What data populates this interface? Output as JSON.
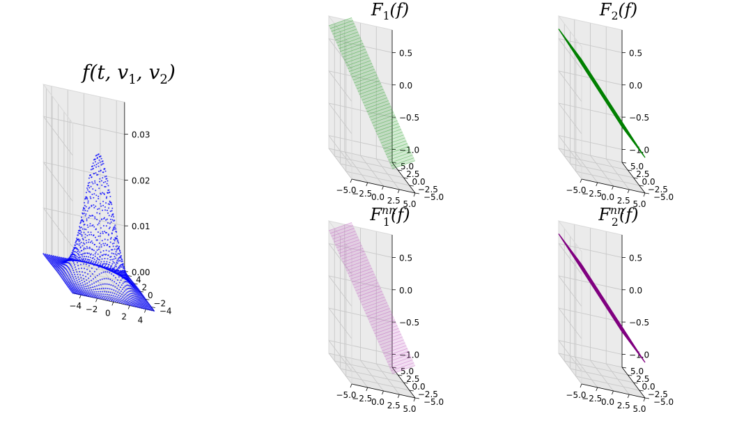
{
  "chart_data": [
    {
      "type": "scatter3d",
      "title": {
        "base": "f",
        "rest": "(t, v",
        "sub1": "1",
        "mid": ", v",
        "sub2": "2",
        "end": ")"
      },
      "marker_color": "#0000ff",
      "xlim": [
        -5,
        5
      ],
      "ylim": [
        -5,
        5
      ],
      "zlim": [
        0,
        0.037
      ],
      "xticks": [
        "−4",
        "−2",
        "0",
        "2",
        "4"
      ],
      "yticks": [
        "−4",
        "−2",
        "0",
        "2",
        "4"
      ],
      "zticks": [
        "0.00",
        "0.01",
        "0.02",
        "0.03"
      ],
      "xtick_values": [
        -4,
        -2,
        0,
        2,
        4
      ],
      "ytick_values": [
        -4,
        -2,
        0,
        2,
        4
      ],
      "ztick_values": [
        0,
        0.01,
        0.02,
        0.03
      ],
      "grid_range": [
        -5,
        5
      ],
      "grid_step": 0.25,
      "distribution": "gaussian",
      "sigma": 1.6,
      "peak": 0.028
    },
    {
      "type": "surface3d",
      "title": {
        "base": "F",
        "sub": "1",
        "sup": "",
        "arg": "(f)"
      },
      "color": "#2ca02c",
      "alpha": 0.38,
      "dense": false,
      "xlim": [
        -5,
        5
      ],
      "ylim": [
        -5,
        5
      ],
      "zlim": [
        -1.2,
        0.85
      ],
      "xticks": [
        "−5.0",
        "−2.5",
        "0.0",
        "2.5",
        "5.0"
      ],
      "yticks": [
        "−5.0",
        "−2.5",
        "0.0",
        "2.5",
        "5.0"
      ],
      "zticks": [
        "−1.0",
        "−0.5",
        "0.0",
        "0.5"
      ],
      "xtick_values": [
        -5,
        -2.5,
        0,
        2.5,
        5
      ],
      "ytick_values": [
        -5,
        -2.5,
        0,
        2.5,
        5
      ],
      "ztick_values": [
        -1,
        -0.5,
        0,
        0.5
      ],
      "plane": {
        "a": -0.2,
        "b": -0.06,
        "c": 0
      }
    },
    {
      "type": "surface3d",
      "title": {
        "base": "F",
        "sub": "2",
        "sup": "",
        "arg": "(f)"
      },
      "color": "#008000",
      "alpha": 1,
      "dense": true,
      "xlim": [
        -5,
        5
      ],
      "ylim": [
        -5,
        5
      ],
      "zlim": [
        -1.2,
        0.85
      ],
      "xticks": [
        "−5.0",
        "−2.5",
        "0.0",
        "2.5",
        "5.0"
      ],
      "yticks": [
        "−5.0",
        "−2.5",
        "0.0",
        "2.5",
        "5.0"
      ],
      "zticks": [
        "−1.0",
        "−0.5",
        "0.0",
        "0.5"
      ],
      "xtick_values": [
        -5,
        -2.5,
        0,
        2.5,
        5
      ],
      "ytick_values": [
        -5,
        -2.5,
        0,
        2.5,
        5
      ],
      "ztick_values": [
        -1,
        -0.5,
        0,
        0.5
      ],
      "plane": {
        "a": -0.13,
        "b": 0.0,
        "c": 0
      }
    },
    {
      "type": "surface3d",
      "title": {
        "base": "F",
        "sub": "1",
        "sup": "nn",
        "arg": "(f)"
      },
      "color": "#bf5fbf",
      "alpha": 0.38,
      "dense": false,
      "xlim": [
        -5,
        5
      ],
      "ylim": [
        -5,
        5
      ],
      "zlim": [
        -1.2,
        0.85
      ],
      "xticks": [
        "−5.0",
        "−2.5",
        "0.0",
        "2.5",
        "5.0"
      ],
      "yticks": [
        "−5.0",
        "−2.5",
        "0.0",
        "2.5",
        "5.0"
      ],
      "zticks": [
        "−1.0",
        "−0.5",
        "0.0",
        "0.5"
      ],
      "xtick_values": [
        -5,
        -2.5,
        0,
        2.5,
        5
      ],
      "ytick_values": [
        -5,
        -2.5,
        0,
        2.5,
        5
      ],
      "ztick_values": [
        -1,
        -0.5,
        0,
        0.5
      ],
      "plane": {
        "a": -0.2,
        "b": -0.06,
        "c": 0
      }
    },
    {
      "type": "surface3d",
      "title": {
        "base": "F",
        "sub": "2",
        "sup": "nn",
        "arg": "(f)"
      },
      "color": "#800080",
      "alpha": 1,
      "dense": true,
      "xlim": [
        -5,
        5
      ],
      "ylim": [
        -5,
        5
      ],
      "zlim": [
        -1.2,
        0.85
      ],
      "xticks": [
        "−5.0",
        "−2.5",
        "0.0",
        "2.5",
        "5.0"
      ],
      "yticks": [
        "−5.0",
        "−2.5",
        "0.0",
        "2.5",
        "5.0"
      ],
      "zticks": [
        "−1.0",
        "−0.5",
        "0.0",
        "0.5"
      ],
      "xtick_values": [
        -5,
        -2.5,
        0,
        2.5,
        5
      ],
      "ytick_values": [
        -5,
        -2.5,
        0,
        2.5,
        5
      ],
      "ztick_values": [
        -1,
        -0.5,
        0,
        0.5
      ],
      "plane": {
        "a": -0.13,
        "b": 0.0,
        "c": 0
      }
    }
  ]
}
